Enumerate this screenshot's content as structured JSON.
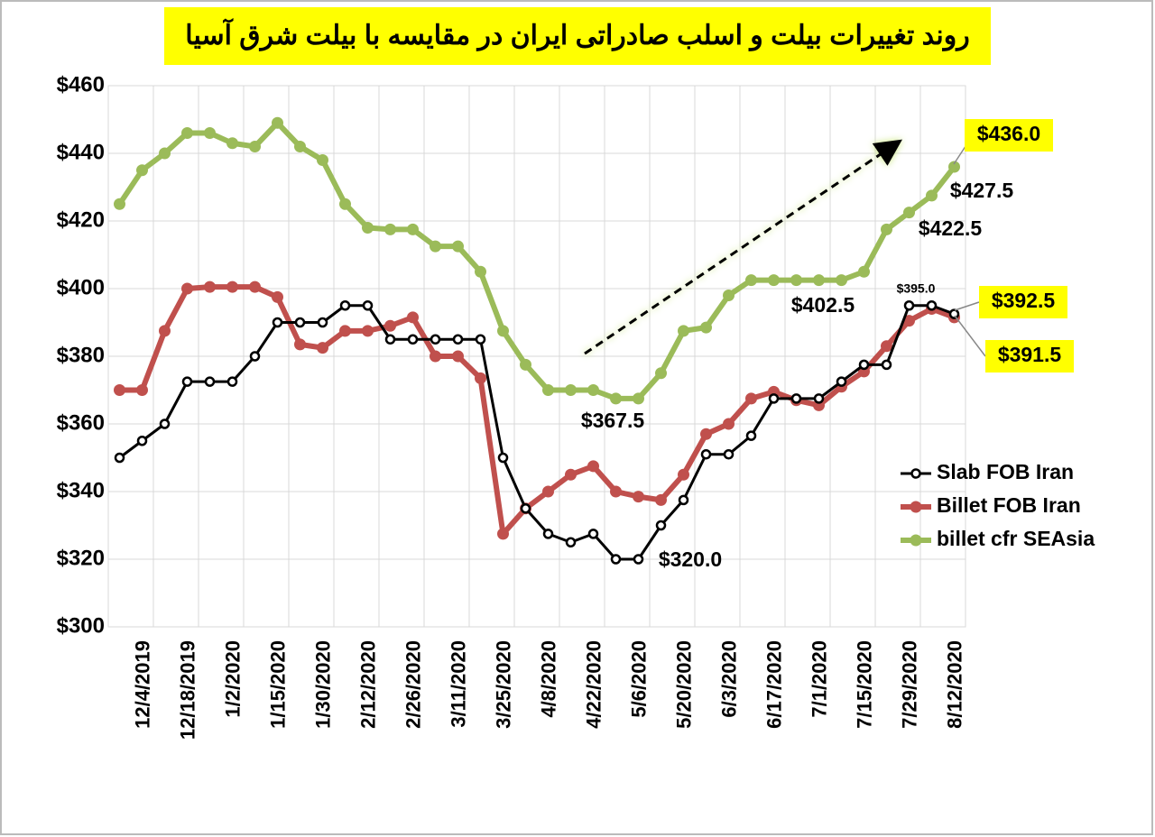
{
  "chart_data": {
    "type": "line",
    "title": "روند تغییرات بیلت و اسلب صادراتی ایران در مقایسه با بیلت شرق آسیا",
    "categories": [
      null,
      "12/4/2019",
      null,
      "12/18/2019",
      null,
      "1/2/2020",
      null,
      "1/15/2020",
      null,
      "1/30/2020",
      null,
      "2/12/2020",
      null,
      "2/26/2020",
      null,
      "3/11/2020",
      null,
      "3/25/2020",
      null,
      "4/8/2020",
      null,
      "4/22/2020",
      null,
      "5/6/2020",
      null,
      "5/20/2020",
      null,
      "6/3/2020",
      null,
      "6/17/2020",
      null,
      "7/1/2020",
      null,
      "7/15/2020",
      null,
      "7/29/2020",
      null,
      "8/12/2020"
    ],
    "series": [
      {
        "name": "Slab FOB Iran",
        "color": "#000000",
        "values": [
          350,
          355,
          360,
          372.5,
          372.5,
          372.5,
          380,
          390,
          390,
          390,
          395,
          395,
          385,
          385,
          385,
          385,
          385,
          350,
          335,
          327.5,
          325,
          327.5,
          320,
          320,
          330,
          337.5,
          351,
          351,
          356.5,
          367.5,
          367.5,
          367.5,
          372.5,
          377.5,
          377.5,
          395,
          395,
          392.5
        ]
      },
      {
        "name": "Billet FOB Iran",
        "color": "#c0504d",
        "values": [
          370,
          370,
          387.5,
          400,
          400.5,
          400.5,
          400.5,
          397.5,
          383.5,
          382.5,
          387.5,
          387.5,
          389,
          391.5,
          380,
          380,
          373.5,
          327.5,
          335,
          340,
          345,
          347.5,
          340,
          338.5,
          337.5,
          345,
          357,
          360,
          367.5,
          369.5,
          367,
          365.5,
          371,
          375.5,
          383,
          390.5,
          394,
          391.5
        ]
      },
      {
        "name": "billet cfr SEAsia",
        "color": "#9bbb59",
        "values": [
          425,
          435,
          440,
          446,
          446,
          443,
          442,
          449,
          442,
          438,
          425,
          418,
          417.5,
          417.5,
          412.5,
          412.5,
          405,
          387.5,
          377.5,
          370,
          370,
          370,
          367.5,
          367.5,
          375,
          387.5,
          388.5,
          398,
          402.5,
          402.5,
          402.5,
          402.5,
          402.5,
          405,
          417.5,
          422.5,
          427.5,
          436
        ]
      }
    ],
    "annotations": [
      "$436.0",
      "$427.5",
      "$422.5",
      "$402.5",
      "$395.0",
      "$392.5",
      "$391.5",
      "$367.5",
      "$320.0"
    ],
    "ylim": [
      300,
      460
    ],
    "yticks": [
      {
        "value": 300,
        "label": "$300"
      },
      {
        "value": 320,
        "label": "$320"
      },
      {
        "value": 340,
        "label": "$340"
      },
      {
        "value": 360,
        "label": "$360"
      },
      {
        "value": 380,
        "label": "$380"
      },
      {
        "value": 400,
        "label": "$400"
      },
      {
        "value": 420,
        "label": "$420"
      },
      {
        "value": 440,
        "label": "$440"
      },
      {
        "value": 460,
        "label": "$460"
      }
    ],
    "grid": true,
    "legend": "right"
  }
}
